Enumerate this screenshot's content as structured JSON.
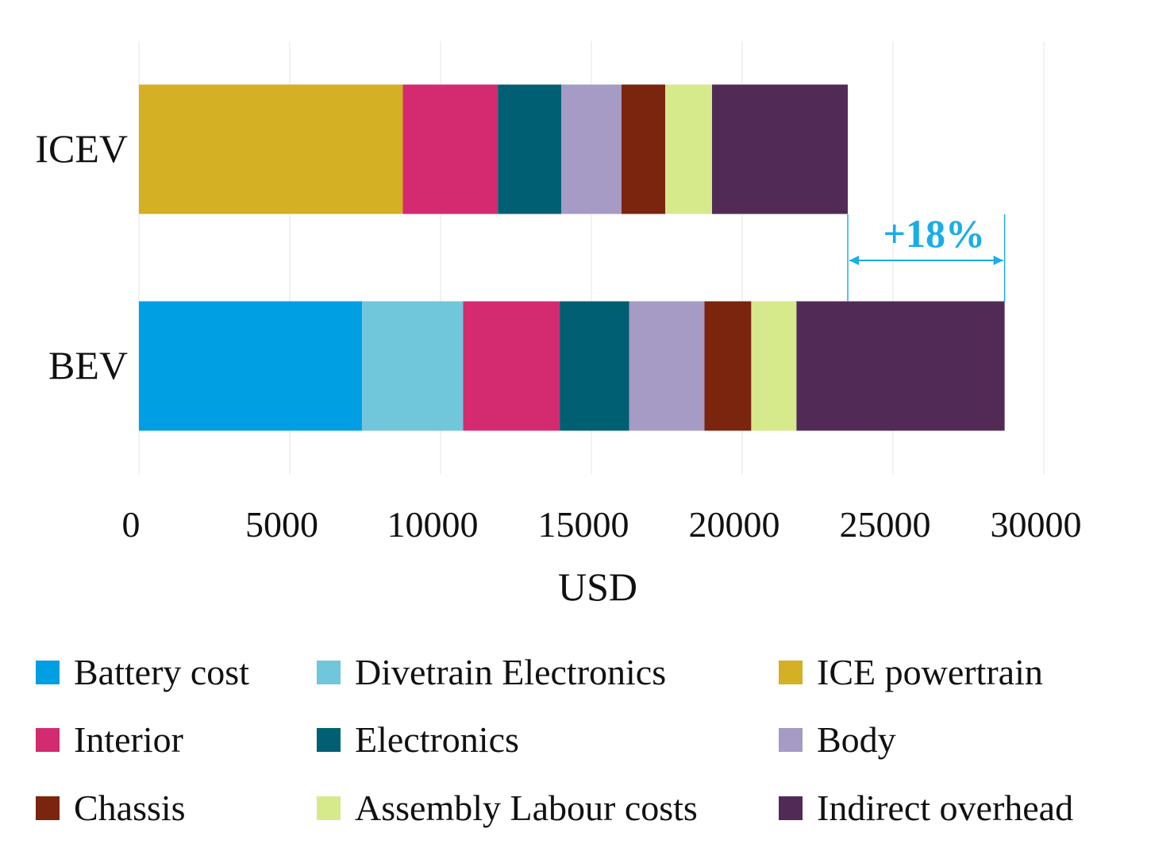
{
  "chart_data": {
    "type": "bar",
    "orientation": "horizontal",
    "stacked": true,
    "categories": [
      "ICEV",
      "BEV"
    ],
    "xlabel": "USD",
    "ylabel": "",
    "xlim": [
      0,
      30000
    ],
    "xticks": [
      0,
      5000,
      10000,
      15000,
      20000,
      25000,
      30000
    ],
    "grid": "vertical",
    "legend_position": "bottom",
    "series": [
      {
        "name": "Battery cost",
        "color": "#009FE3",
        "values": [
          0,
          7400
        ]
      },
      {
        "name": "Divetrain Electronics",
        "color": "#70C6DB",
        "values": [
          0,
          3350
        ]
      },
      {
        "name": "ICE powertrain",
        "color": "#D3B024",
        "values": [
          8750,
          0
        ]
      },
      {
        "name": "Interior",
        "color": "#D42A6F",
        "values": [
          3150,
          3200
        ]
      },
      {
        "name": "Electronics",
        "color": "#005F73",
        "values": [
          2100,
          2300
        ]
      },
      {
        "name": "Body",
        "color": "#A59BC5",
        "values": [
          2000,
          2500
        ]
      },
      {
        "name": "Chassis",
        "color": "#7B240E",
        "values": [
          1450,
          1550
        ]
      },
      {
        "name": "Assembly Labour costs",
        "color": "#D6EA8C",
        "values": [
          1550,
          1500
        ]
      },
      {
        "name": "Indirect overhead",
        "color": "#512B55",
        "values": [
          4500,
          6900
        ]
      }
    ],
    "annotation": {
      "text": "+18%",
      "color": "#1AADE6",
      "from_value": 23500,
      "to_value": 28700
    }
  }
}
